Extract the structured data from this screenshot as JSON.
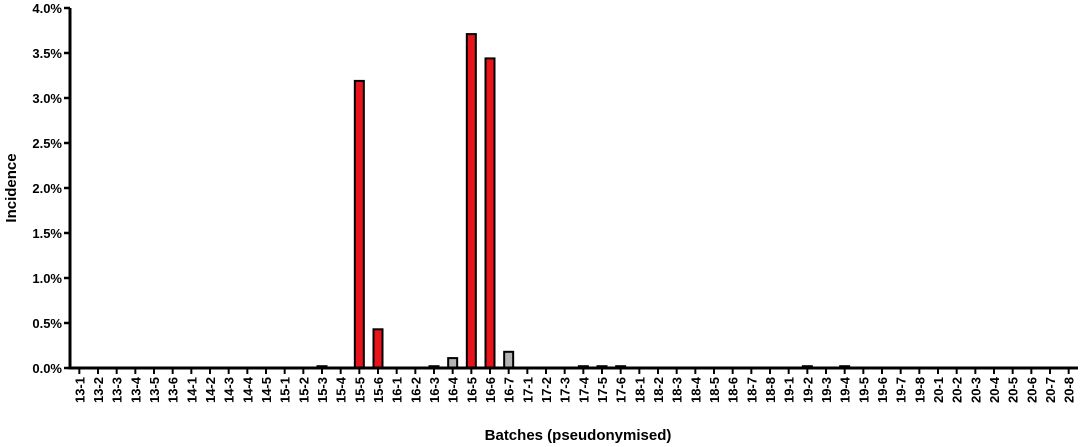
{
  "chart_data": {
    "type": "bar",
    "title": "",
    "xlabel": "Batches (pseudonymised)",
    "ylabel": "Incidence",
    "ylim": [
      0,
      4.0
    ],
    "yticks": [
      "0.0%",
      "0.5%",
      "1.0%",
      "1.5%",
      "2.0%",
      "2.5%",
      "3.0%",
      "3.5%",
      "4.0%"
    ],
    "grid": false,
    "legend": "none",
    "colors": {
      "red": "#e8141b",
      "gray": "#b3b3b3",
      "outline": "#000000"
    },
    "categories": [
      "13-1",
      "13-2",
      "13-3",
      "13-4",
      "13-5",
      "13-6",
      "14-1",
      "14-2",
      "14-3",
      "14-4",
      "14-5",
      "15-1",
      "15-2",
      "15-3",
      "15-4",
      "15-5",
      "15-6",
      "16-1",
      "16-2",
      "16-3",
      "16-4",
      "16-5",
      "16-6",
      "16-7",
      "17-1",
      "17-2",
      "17-3",
      "17-4",
      "17-5",
      "17-6",
      "18-1",
      "18-2",
      "18-3",
      "18-4",
      "18-5",
      "18-6",
      "18-7",
      "18-8",
      "19-1",
      "19-2",
      "19-3",
      "19-4",
      "19-5",
      "19-6",
      "19-7",
      "19-8",
      "20-1",
      "20-2",
      "20-3",
      "20-4",
      "20-5",
      "20-6",
      "20-7",
      "20-8"
    ],
    "values": [
      0,
      0,
      0,
      0,
      0,
      0,
      0,
      0,
      0,
      0,
      0,
      0,
      0,
      0.02,
      0,
      3.19,
      0.43,
      0,
      0,
      0.02,
      0.11,
      3.71,
      3.44,
      0.18,
      0,
      0,
      0,
      0.02,
      0.02,
      0.02,
      0,
      0,
      0,
      0,
      0,
      0,
      0,
      0,
      0,
      0.02,
      0,
      0.02,
      0,
      0,
      0,
      0,
      0,
      0,
      0,
      0,
      0,
      0,
      0,
      0
    ],
    "bar_colors": [
      "",
      "",
      "",
      "",
      "",
      "",
      "",
      "",
      "",
      "",
      "",
      "",
      "",
      "gray",
      "",
      "red",
      "red",
      "",
      "",
      "gray",
      "gray",
      "red",
      "red",
      "gray",
      "",
      "",
      "",
      "gray",
      "gray",
      "gray",
      "",
      "",
      "",
      "",
      "",
      "",
      "",
      "",
      "",
      "gray",
      "",
      "gray",
      "",
      "",
      "",
      "",
      "",
      "",
      "",
      "",
      "",
      "",
      "",
      ""
    ]
  }
}
